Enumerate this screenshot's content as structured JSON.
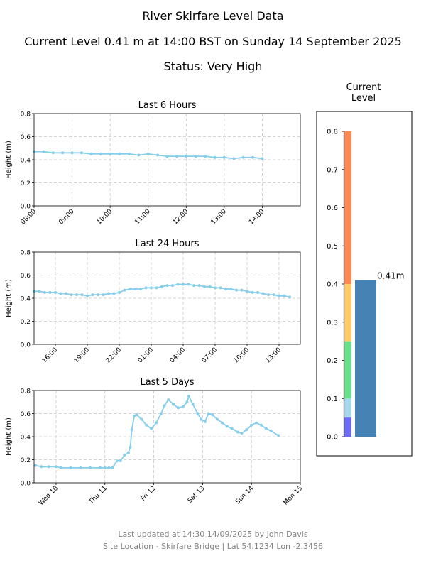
{
  "header": {
    "title": "River Skirfare Level Data",
    "current": "Current Level 0.41 m at 14:00 BST on Sunday 14 September 2025",
    "status": "Status: Very High"
  },
  "footer": {
    "updated": "Last updated at 14:30 14/09/2025 by John Davis",
    "site": "Site Location - Skirfare Bridge | Lat 54.1234 Lon -2.3456"
  },
  "colors": {
    "line": "#87ceeb",
    "grid": "#c8c8c8",
    "current_bar": "#4682b4",
    "bands": [
      "#6b6bf7",
      "#a6d8f0",
      "#66e08a",
      "#ffcc66",
      "#ff8855"
    ]
  },
  "chart_data": [
    {
      "type": "line",
      "title": "Last 6 Hours",
      "ylabel": "Height (m)",
      "xlabel": "",
      "ylim": [
        0,
        0.8
      ],
      "yticks": [
        "0.0",
        "0.2",
        "0.4",
        "0.6",
        "0.8"
      ],
      "xlim": [
        0,
        7
      ],
      "xticks": [
        {
          "x": 0,
          "label": "08:00"
        },
        {
          "x": 1,
          "label": "09:00"
        },
        {
          "x": 2,
          "label": "10:00"
        },
        {
          "x": 3,
          "label": "11:00"
        },
        {
          "x": 4,
          "label": "12:00"
        },
        {
          "x": 5,
          "label": "13:00"
        },
        {
          "x": 6,
          "label": "14:00"
        }
      ],
      "grid": true,
      "x": [
        0,
        0.25,
        0.5,
        0.75,
        1,
        1.25,
        1.5,
        1.75,
        2,
        2.25,
        2.5,
        2.75,
        3,
        3.25,
        3.5,
        3.75,
        4,
        4.25,
        4.5,
        4.75,
        5,
        5.25,
        5.5,
        5.75,
        6
      ],
      "values": [
        0.47,
        0.47,
        0.46,
        0.46,
        0.46,
        0.46,
        0.45,
        0.45,
        0.45,
        0.45,
        0.45,
        0.44,
        0.45,
        0.44,
        0.43,
        0.43,
        0.43,
        0.43,
        0.43,
        0.42,
        0.42,
        0.41,
        0.42,
        0.42,
        0.41
      ]
    },
    {
      "type": "line",
      "title": "Last 24 Hours",
      "ylabel": "Height (m)",
      "xlabel": "",
      "ylim": [
        0,
        0.8
      ],
      "yticks": [
        "0.0",
        "0.2",
        "0.4",
        "0.6",
        "0.8"
      ],
      "xlim": [
        0,
        25
      ],
      "xticks": [
        {
          "x": 2,
          "label": "16:00"
        },
        {
          "x": 5,
          "label": "19:00"
        },
        {
          "x": 8,
          "label": "22:00"
        },
        {
          "x": 11,
          "label": "01:00"
        },
        {
          "x": 14,
          "label": "04:00"
        },
        {
          "x": 17,
          "label": "07:00"
        },
        {
          "x": 20,
          "label": "10:00"
        },
        {
          "x": 23,
          "label": "13:00"
        }
      ],
      "grid": true,
      "x": [
        0,
        0.5,
        1,
        1.5,
        2,
        2.5,
        3,
        3.5,
        4,
        4.5,
        5,
        5.5,
        6,
        6.5,
        7,
        7.5,
        8,
        8.5,
        9,
        9.5,
        10,
        10.5,
        11,
        11.5,
        12,
        12.5,
        13,
        13.5,
        14,
        14.5,
        15,
        15.5,
        16,
        16.5,
        17,
        17.5,
        18,
        18.5,
        19,
        19.5,
        20,
        20.5,
        21,
        21.5,
        22,
        22.5,
        23,
        23.5,
        24
      ],
      "values": [
        0.46,
        0.46,
        0.45,
        0.45,
        0.45,
        0.44,
        0.44,
        0.43,
        0.43,
        0.43,
        0.42,
        0.43,
        0.43,
        0.43,
        0.44,
        0.44,
        0.45,
        0.47,
        0.48,
        0.48,
        0.48,
        0.49,
        0.49,
        0.49,
        0.5,
        0.51,
        0.51,
        0.52,
        0.52,
        0.52,
        0.51,
        0.51,
        0.5,
        0.5,
        0.49,
        0.49,
        0.48,
        0.48,
        0.47,
        0.47,
        0.46,
        0.45,
        0.45,
        0.44,
        0.43,
        0.43,
        0.42,
        0.42,
        0.41
      ]
    },
    {
      "type": "line",
      "title": "Last 5 Days",
      "ylabel": "Height (m)",
      "xlabel": "",
      "ylim": [
        0,
        0.8
      ],
      "yticks": [
        "0.0",
        "0.2",
        "0.4",
        "0.6",
        "0.8"
      ],
      "xlim": [
        -0.45,
        5.0
      ],
      "xticks": [
        {
          "x": 0,
          "label": "Wed 10"
        },
        {
          "x": 1,
          "label": "Thu 11"
        },
        {
          "x": 2,
          "label": "Fri 12"
        },
        {
          "x": 3,
          "label": "Sat 13"
        },
        {
          "x": 4,
          "label": "Sun 14"
        },
        {
          "x": 5,
          "label": "Mon 15"
        }
      ],
      "grid": true,
      "x": [
        -0.42,
        -0.3,
        -0.15,
        0,
        0.1,
        0.3,
        0.5,
        0.7,
        0.9,
        1.0,
        1.08,
        1.15,
        1.25,
        1.32,
        1.4,
        1.48,
        1.52,
        1.55,
        1.6,
        1.65,
        1.75,
        1.85,
        1.95,
        2.05,
        2.15,
        2.22,
        2.3,
        2.4,
        2.5,
        2.6,
        2.68,
        2.72,
        2.8,
        2.9,
        2.97,
        3.05,
        3.12,
        3.2,
        3.3,
        3.4,
        3.5,
        3.6,
        3.72,
        3.8,
        3.9,
        4.0,
        4.1,
        4.2,
        4.3,
        4.4,
        4.55
      ],
      "values": [
        0.15,
        0.14,
        0.14,
        0.14,
        0.13,
        0.13,
        0.13,
        0.13,
        0.13,
        0.13,
        0.13,
        0.13,
        0.19,
        0.19,
        0.24,
        0.26,
        0.31,
        0.46,
        0.58,
        0.59,
        0.55,
        0.5,
        0.47,
        0.52,
        0.6,
        0.67,
        0.72,
        0.68,
        0.65,
        0.66,
        0.7,
        0.75,
        0.68,
        0.6,
        0.55,
        0.53,
        0.6,
        0.59,
        0.55,
        0.52,
        0.49,
        0.47,
        0.44,
        0.43,
        0.46,
        0.5,
        0.52,
        0.5,
        0.47,
        0.45,
        0.41
      ]
    },
    {
      "type": "bar",
      "title": "Current\nLevel",
      "ylim": [
        0,
        0.8
      ],
      "yticks": [
        "0.0",
        "0.1",
        "0.2",
        "0.3",
        "0.4",
        "0.5",
        "0.6",
        "0.7",
        "0.8"
      ],
      "value": 0.41,
      "value_label": "0.41m",
      "bands": [
        {
          "from": 0.0,
          "to": 0.05
        },
        {
          "from": 0.05,
          "to": 0.1
        },
        {
          "from": 0.1,
          "to": 0.25
        },
        {
          "from": 0.25,
          "to": 0.4
        },
        {
          "from": 0.4,
          "to": 0.8
        }
      ]
    }
  ]
}
